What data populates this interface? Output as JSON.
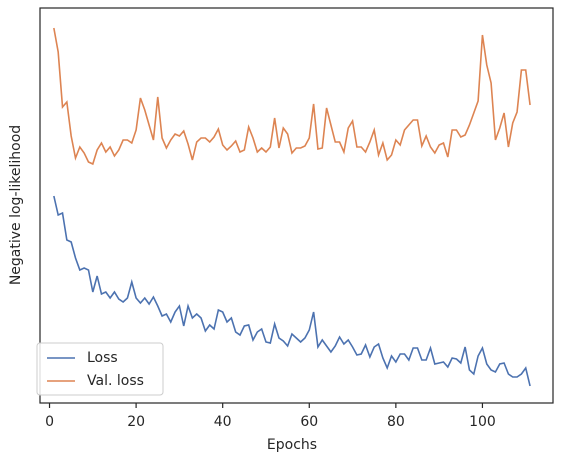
{
  "chart_data": {
    "type": "line",
    "x_label": "Epochs",
    "y_label": "Negative log-likelihood",
    "x": [
      1,
      2,
      3,
      4,
      5,
      6,
      7,
      8,
      9,
      10,
      11,
      12,
      13,
      14,
      15,
      16,
      17,
      18,
      19,
      20,
      21,
      22,
      23,
      24,
      25,
      26,
      27,
      28,
      29,
      30,
      31,
      32,
      33,
      34,
      35,
      36,
      37,
      38,
      39,
      40,
      41,
      42,
      43,
      44,
      45,
      46,
      47,
      48,
      49,
      50,
      51,
      52,
      53,
      54,
      55,
      56,
      57,
      58,
      59,
      60,
      61,
      62,
      63,
      64,
      65,
      66,
      67,
      68,
      69,
      70,
      71,
      72,
      73,
      74,
      75,
      76,
      77,
      78,
      79,
      80,
      81,
      82,
      83,
      84,
      85,
      86,
      87,
      88,
      89,
      90,
      91,
      92,
      93,
      94,
      95,
      96,
      97,
      98,
      99,
      100,
      101,
      102,
      103,
      104,
      105,
      106,
      107,
      108,
      109,
      110,
      111
    ],
    "series": [
      {
        "name": "Loss",
        "color": "#4c72b0",
        "values": [
          207,
          188,
          190,
          163,
          161,
          145,
          133,
          135,
          133,
          111,
          127,
          109,
          111,
          105,
          111,
          104,
          101,
          105,
          121,
          105,
          100,
          105,
          99,
          106,
          97,
          87,
          89,
          81,
          91,
          97,
          77,
          97,
          85,
          89,
          85,
          72,
          78,
          74,
          93,
          91,
          81,
          85,
          71,
          68,
          77,
          78,
          63,
          71,
          74,
          61,
          60,
          79,
          65,
          62,
          57,
          69,
          65,
          61,
          65,
          73,
          91,
          56,
          63,
          57,
          51,
          57,
          66,
          59,
          63,
          56,
          48,
          49,
          58,
          46,
          56,
          59,
          45,
          35,
          47,
          41,
          49,
          49,
          43,
          55,
          55,
          43,
          43,
          55,
          39,
          40,
          41,
          36,
          45,
          44,
          40,
          56,
          33,
          29,
          47,
          55,
          39,
          33,
          31,
          39,
          40,
          29,
          26,
          26,
          29,
          35,
          17
        ]
      },
      {
        "name": "Val. loss",
        "color": "#dd8452",
        "values": [
          375,
          351,
          296,
          301,
          267,
          245,
          256,
          250,
          241,
          239,
          253,
          260,
          251,
          256,
          247,
          253,
          263,
          263,
          260,
          273,
          305,
          293,
          278,
          263,
          306,
          265,
          255,
          263,
          269,
          267,
          272,
          259,
          243,
          261,
          265,
          265,
          261,
          266,
          274,
          258,
          253,
          257,
          262,
          251,
          253,
          276,
          265,
          251,
          255,
          251,
          256,
          285,
          255,
          275,
          269,
          250,
          255,
          255,
          257,
          265,
          299,
          254,
          255,
          295,
          278,
          261,
          261,
          251,
          275,
          282,
          256,
          256,
          251,
          261,
          273,
          248,
          260,
          243,
          248,
          263,
          258,
          273,
          278,
          283,
          283,
          257,
          267,
          256,
          250,
          258,
          260,
          246,
          273,
          273,
          266,
          268,
          278,
          290,
          302,
          368,
          338,
          320,
          263,
          275,
          290,
          256,
          280,
          291,
          333,
          333,
          298
        ]
      }
    ],
    "xlim": [
      -2.2,
      116.3
    ],
    "xticks": [
      0,
      20,
      40,
      60,
      80,
      100
    ],
    "ylim": [
      0,
      395
    ],
    "legend": "lower left"
  }
}
